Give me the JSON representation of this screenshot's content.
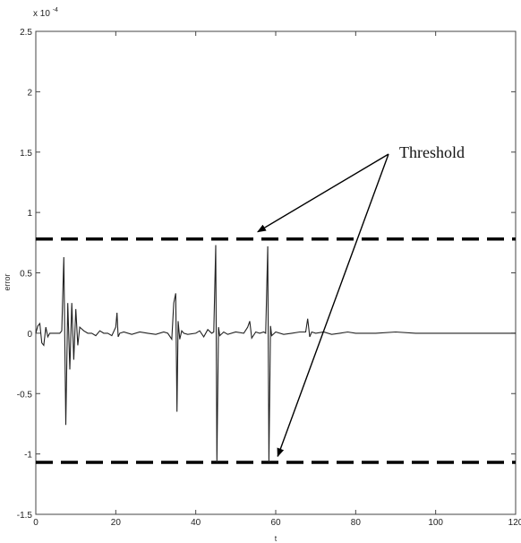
{
  "chart_data": {
    "type": "line",
    "title": "",
    "xlabel": "t",
    "ylabel": "error",
    "xlim": [
      0,
      120
    ],
    "ylim": [
      -1.5,
      2.5
    ],
    "y_multiplier_label": "x 10",
    "y_multiplier_exponent": "-4",
    "x_ticks": [
      0,
      20,
      40,
      60,
      80,
      100,
      120
    ],
    "x_tick_labels": [
      "0",
      "20",
      "40",
      "60",
      "80",
      "100",
      "120"
    ],
    "y_ticks": [
      2.5,
      2,
      1.5,
      1,
      0.5,
      0,
      -0.5,
      -1,
      -1.5
    ],
    "y_tick_labels": [
      "2.5",
      "2",
      "1.5",
      "1",
      "0.5",
      "0",
      "-0.5",
      "-1",
      "-1.5"
    ],
    "grid": false,
    "thresholds": [
      {
        "name": "upper-threshold",
        "value": 0.78
      },
      {
        "name": "lower-threshold",
        "value": -1.07
      }
    ],
    "annotation": {
      "text": "Threshold",
      "x": 85,
      "y": 1.5
    },
    "series": [
      {
        "x": [
          0,
          0.5,
          1,
          1.5,
          2,
          2.5,
          3,
          3.5,
          4,
          5,
          6,
          6.5,
          7,
          7.5,
          8,
          8.5,
          9,
          9.5,
          10,
          10.5,
          11,
          12,
          13,
          14,
          15,
          16,
          17,
          18,
          19,
          20,
          20.3,
          20.6,
          21,
          22,
          24,
          26,
          28,
          30,
          32,
          33,
          34,
          34.5,
          35,
          35.3,
          35.6,
          36,
          36.5,
          37,
          38,
          40,
          41,
          42,
          43,
          44,
          44.5,
          45,
          45.3,
          45.7,
          46,
          47,
          48,
          50,
          52,
          53,
          53.5,
          54,
          55,
          56,
          57,
          57.5,
          58,
          58.3,
          58.7,
          59,
          60,
          62,
          64,
          66,
          67.5,
          68,
          68.5,
          69,
          70,
          72,
          74,
          76,
          78,
          80,
          85,
          90,
          95,
          100,
          105,
          110,
          115,
          120
        ],
        "y": [
          0,
          0.06,
          0.08,
          -0.08,
          -0.1,
          0.05,
          -0.03,
          0,
          0,
          0,
          0,
          0.02,
          0.63,
          -0.76,
          0.25,
          -0.3,
          0.25,
          -0.22,
          0.2,
          -0.1,
          0.05,
          0.02,
          0,
          0,
          -0.02,
          0.02,
          0,
          0,
          -0.02,
          0.05,
          0.17,
          -0.03,
          0,
          0.01,
          -0.01,
          0.01,
          0,
          -0.01,
          0.01,
          0,
          -0.05,
          0.25,
          0.33,
          -0.65,
          0.1,
          -0.05,
          0.02,
          0,
          -0.01,
          0,
          0.02,
          -0.03,
          0.03,
          0,
          0.01,
          0.73,
          -1.07,
          0.05,
          -0.02,
          0.01,
          -0.01,
          0.01,
          0,
          0.05,
          0.1,
          -0.04,
          0.01,
          0,
          0.01,
          0,
          0.72,
          -1.07,
          0.06,
          -0.02,
          0.01,
          -0.01,
          0,
          0.01,
          0.01,
          0.12,
          -0.03,
          0.01,
          0,
          0.01,
          -0.01,
          0,
          0.01,
          0,
          0,
          0.01,
          0,
          0,
          0,
          0,
          0,
          0
        ]
      }
    ]
  }
}
